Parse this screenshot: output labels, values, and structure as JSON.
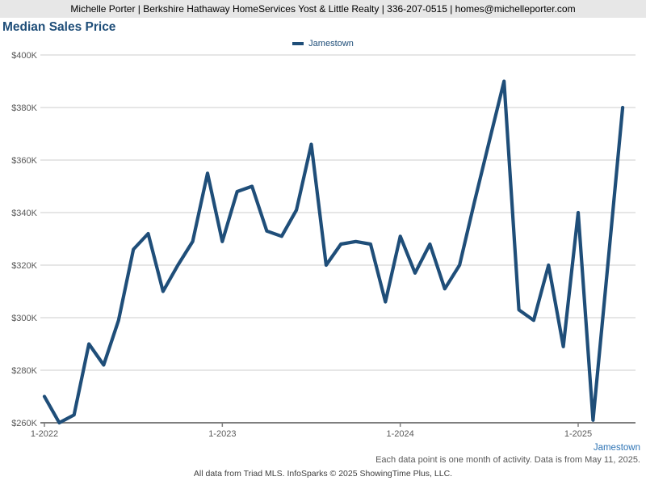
{
  "header": {
    "contact_bar": "Michelle Porter | Berkshire Hathaway HomeServices Yost & Little Realty | 336-207-0515 | homes@michelleporter.com"
  },
  "title": "Median Sales Price",
  "legend": {
    "label": "Jamestown"
  },
  "footer": {
    "series_label": "Jamestown",
    "note": "Each data point is one month of activity. Data is from May 11, 2025.",
    "attribution": "All data from Triad MLS. InfoSparks © 2025 ShowingTime Plus, LLC."
  },
  "colors": {
    "line": "#1F4E79",
    "title_text": "#1F4E79",
    "legend_text": "#1F4E79",
    "footer_series_text": "#2E74B5",
    "grid_line": "#CCCCCC",
    "axis_line": "#7F7F7F",
    "tick_label": "#595959",
    "header_bar_bg": "#E7E7E7"
  },
  "chart_data": {
    "type": "line",
    "title": "Median Sales Price",
    "ylabel": "",
    "xlabel": "",
    "grid": true,
    "legend_position": "top-center",
    "ylim": [
      260000,
      400000
    ],
    "yticks": [
      {
        "label": "$400K",
        "value": 400000
      },
      {
        "label": "$380K",
        "value": 380000
      },
      {
        "label": "$360K",
        "value": 360000
      },
      {
        "label": "$340K",
        "value": 340000
      },
      {
        "label": "$320K",
        "value": 320000
      },
      {
        "label": "$300K",
        "value": 300000
      },
      {
        "label": "$280K",
        "value": 280000
      },
      {
        "label": "$260K",
        "value": 260000
      }
    ],
    "xticks": [
      {
        "label": "1-2022",
        "month_index": 0
      },
      {
        "label": "1-2023",
        "month_index": 12
      },
      {
        "label": "1-2024",
        "month_index": 24
      },
      {
        "label": "1-2025",
        "month_index": 36
      }
    ],
    "x_labels": [
      "1-2022",
      "2-2022",
      "3-2022",
      "4-2022",
      "5-2022",
      "6-2022",
      "7-2022",
      "8-2022",
      "9-2022",
      "10-2022",
      "11-2022",
      "12-2022",
      "1-2023",
      "2-2023",
      "3-2023",
      "4-2023",
      "5-2023",
      "6-2023",
      "7-2023",
      "8-2023",
      "9-2023",
      "10-2023",
      "11-2023",
      "12-2023",
      "1-2024",
      "2-2024",
      "3-2024",
      "4-2024",
      "5-2024",
      "6-2024",
      "7-2024",
      "8-2024",
      "9-2024",
      "10-2024",
      "11-2024",
      "12-2024",
      "1-2025",
      "2-2025",
      "3-2025",
      "4-2025"
    ],
    "series": [
      {
        "name": "Jamestown",
        "color": "#1F4E79",
        "values": [
          270000,
          260000,
          263000,
          290000,
          282000,
          299000,
          326000,
          332000,
          310000,
          320000,
          329000,
          355000,
          329000,
          348000,
          350000,
          333000,
          331000,
          341000,
          366000,
          320000,
          328000,
          329000,
          328000,
          306000,
          331000,
          317000,
          328000,
          311000,
          320000,
          344000,
          367000,
          390000,
          303000,
          299000,
          320000,
          289000,
          340000,
          261000,
          320000,
          380000
        ]
      }
    ]
  }
}
